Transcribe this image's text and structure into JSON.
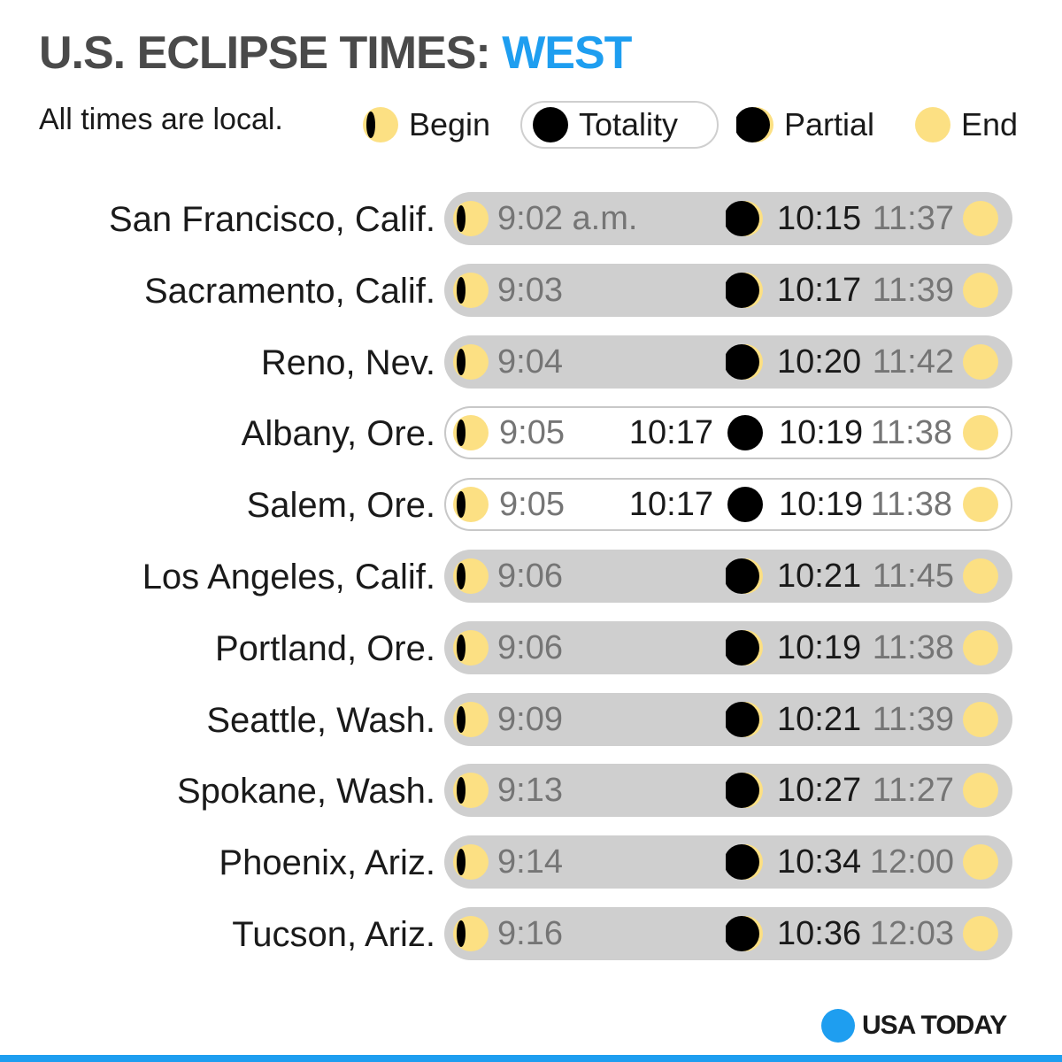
{
  "title": {
    "main": "U.S. ECLIPSE TIMES: ",
    "accent": "WEST"
  },
  "note": "All times are local.",
  "legend": {
    "begin": "Begin",
    "totality": "Totality",
    "partial": "Partial",
    "end": "End"
  },
  "colors": {
    "accent": "#1e9ef0",
    "sun": "#fce083",
    "moon": "#000000",
    "bar": "#cfcfcf"
  },
  "rows": [
    {
      "city": "San Francisco, Calif.",
      "begin": "9:02 a.m.",
      "totality": "",
      "partial": "10:15",
      "end": "11:37"
    },
    {
      "city": "Sacramento, Calif.",
      "begin": "9:03",
      "totality": "",
      "partial": "10:17",
      "end": "11:39"
    },
    {
      "city": "Reno, Nev.",
      "begin": "9:04",
      "totality": "",
      "partial": "10:20",
      "end": "11:42"
    },
    {
      "city": "Albany, Ore.",
      "begin": "9:05",
      "totality": "10:17",
      "partial": "10:19",
      "end": "11:38"
    },
    {
      "city": "Salem, Ore.",
      "begin": "9:05",
      "totality": "10:17",
      "partial": "10:19",
      "end": "11:38"
    },
    {
      "city": "Los Angeles, Calif.",
      "begin": "9:06",
      "totality": "",
      "partial": "10:21",
      "end": "11:45"
    },
    {
      "city": "Portland, Ore.",
      "begin": "9:06",
      "totality": "",
      "partial": "10:19",
      "end": "11:38"
    },
    {
      "city": "Seattle, Wash.",
      "begin": "9:09",
      "totality": "",
      "partial": "10:21",
      "end": "11:39"
    },
    {
      "city": "Spokane, Wash.",
      "begin": "9:13",
      "totality": "",
      "partial": "10:27",
      "end": "11:27"
    },
    {
      "city": "Phoenix, Ariz.",
      "begin": "9:14",
      "totality": "",
      "partial": "10:34",
      "end": "12:00"
    },
    {
      "city": "Tucson, Ariz.",
      "begin": "9:16",
      "totality": "",
      "partial": "10:36",
      "end": "12:03"
    }
  ],
  "logo": {
    "text": "USA TODAY"
  }
}
